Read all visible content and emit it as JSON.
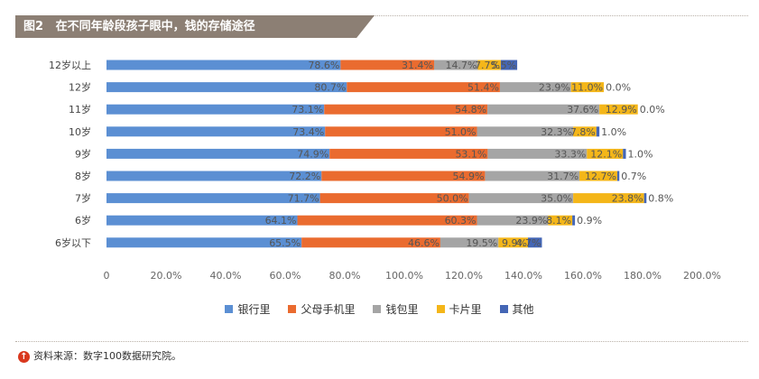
{
  "header": {
    "figure_number": "图2",
    "title": "在不同年龄段孩子眼中，钱的存储途径"
  },
  "source": {
    "icon": "up-arrow-circle-icon",
    "text": "资料来源：数字100数据研究院。"
  },
  "colors": {
    "header": "#8c7f74",
    "series": [
      "#5b8fd3",
      "#ea6b2f",
      "#a5a5a5",
      "#f4b619",
      "#4466b5"
    ]
  },
  "chart_data": {
    "type": "bar",
    "orientation": "horizontal",
    "stacked": true,
    "categories": [
      "12岁以上",
      "12岁",
      "11岁",
      "10岁",
      "9岁",
      "8岁",
      "7岁",
      "6岁",
      "6岁以下"
    ],
    "series": [
      {
        "name": "银行里",
        "values": [
          78.6,
          80.7,
          73.1,
          73.4,
          74.9,
          72.2,
          71.7,
          64.1,
          65.5
        ],
        "labels": [
          "78.6%",
          "80.7%",
          "73.1%",
          "73.4%",
          "74.9%",
          "72.2%",
          "71.7%",
          "64.1%",
          "65.5%"
        ]
      },
      {
        "name": "父母手机里",
        "values": [
          31.4,
          51.4,
          54.8,
          51.0,
          53.1,
          54.9,
          50.0,
          60.3,
          46.6
        ],
        "labels": [
          "31.4%",
          "51.4%",
          "54.8%",
          "51.0%",
          "53.1%",
          "54.9%",
          "50.0%",
          "60.3%",
          "46.6%"
        ]
      },
      {
        "name": "钱包里",
        "values": [
          14.7,
          23.9,
          37.6,
          32.3,
          33.3,
          31.7,
          35.0,
          23.9,
          19.5
        ],
        "labels": [
          "14.7%",
          "23.9%",
          "37.6%",
          "32.3%",
          "33.3%",
          "31.7%",
          "35.0%",
          "23.9%",
          "19.5%"
        ]
      },
      {
        "name": "卡片里",
        "values": [
          7.7,
          11.0,
          12.9,
          7.8,
          12.1,
          12.7,
          23.8,
          8.1,
          9.9
        ],
        "labels": [
          "7.7%",
          "11.0%",
          "12.9%",
          "7.8%",
          "12.1%",
          "12.7%",
          "23.8%",
          "8.1%",
          "9.9%"
        ]
      },
      {
        "name": "其他",
        "values": [
          5.5,
          0.0,
          0.0,
          1.0,
          1.0,
          0.7,
          0.8,
          0.9,
          4.7
        ],
        "labels": [
          "5.5%",
          "0.0%",
          "0.0%",
          "1.0%",
          "1.0%",
          "0.7%",
          "0.8%",
          "0.9%",
          "4.7%"
        ]
      }
    ],
    "xlim": [
      0,
      200
    ],
    "xticks": [
      "0",
      "20.0%",
      "40.0%",
      "60.0%",
      "80.0%",
      "100.0%",
      "120.0%",
      "140.0%",
      "160.0%",
      "180.0%",
      "200.0%"
    ],
    "grid": false,
    "legend": "bottom"
  }
}
